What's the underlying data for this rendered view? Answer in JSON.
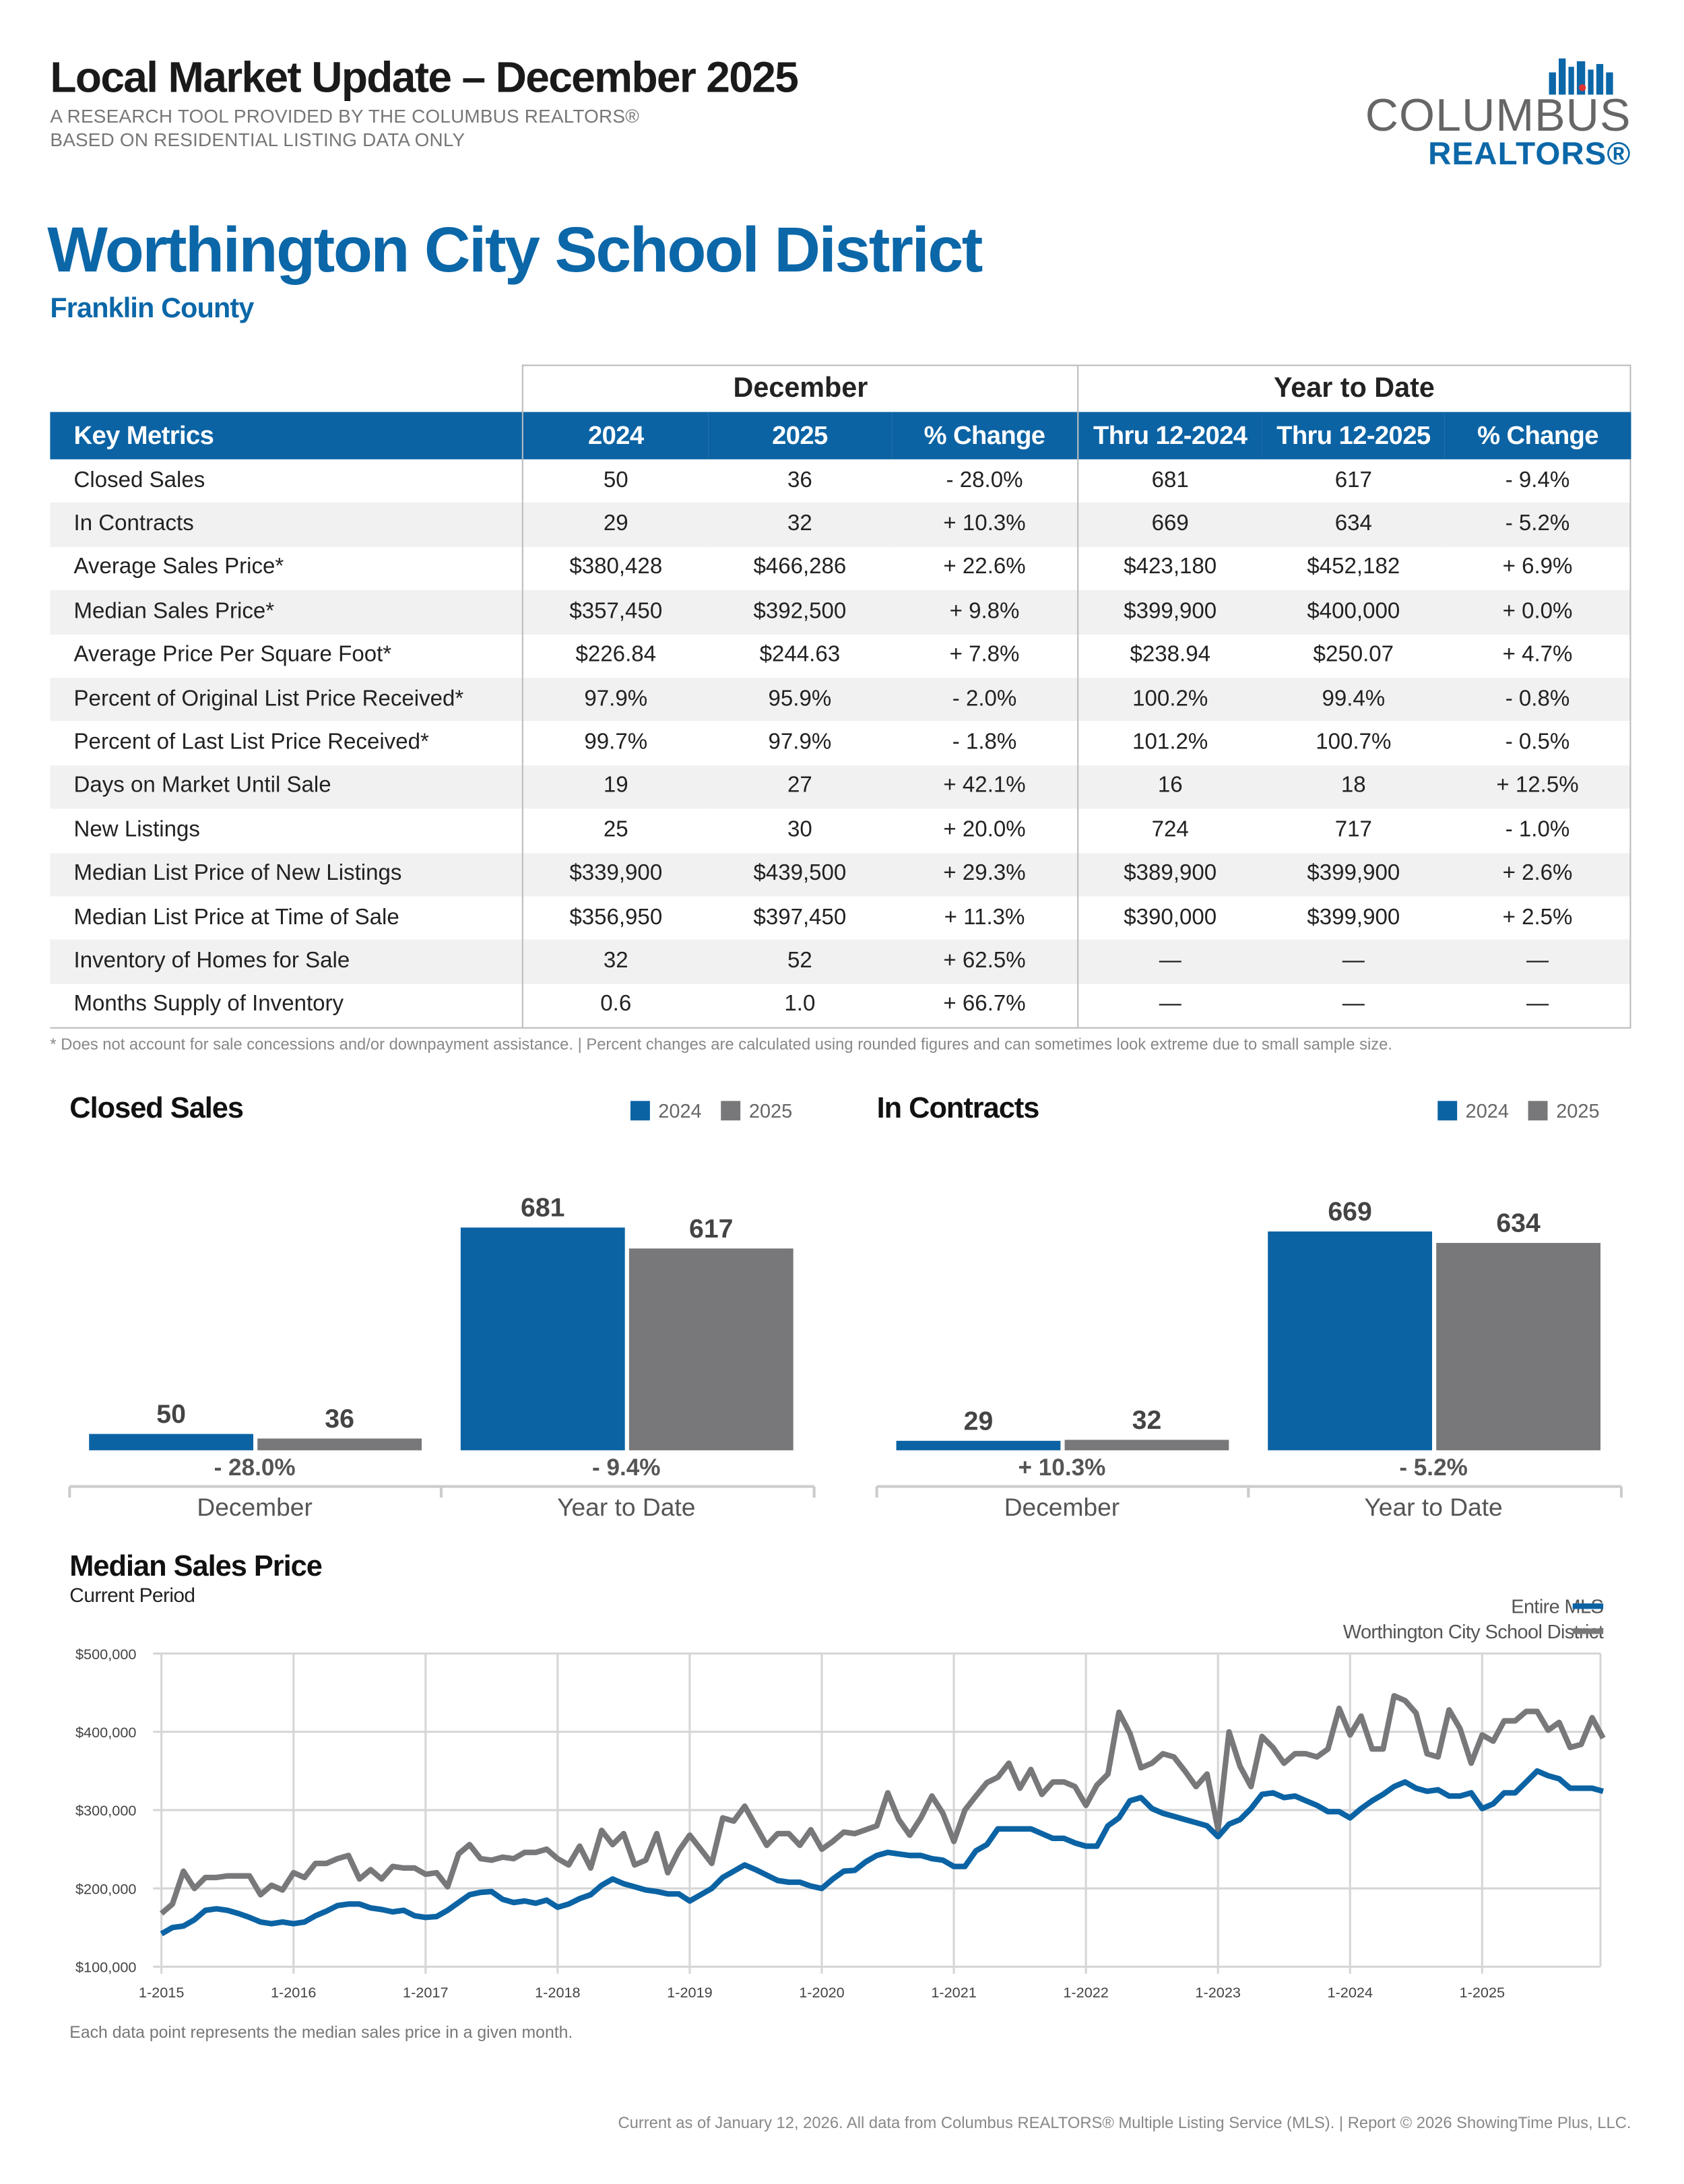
{
  "header": {
    "title": "Local Market Update – December 2025",
    "subtitle1": "A RESEARCH TOOL PROVIDED BY THE COLUMBUS REALTORS®",
    "subtitle2": "BASED ON RESIDENTIAL LISTING DATA ONLY",
    "logo_line1": "COLUMBUS",
    "logo_line2": "REALTORS®"
  },
  "area": {
    "name": "Worthington City School District",
    "county": "Franklin County"
  },
  "colors": {
    "blue": "#0b63a4",
    "gray": "#78787b"
  },
  "table": {
    "group_headers": [
      "December",
      "Year to Date"
    ],
    "columns": [
      "Key Metrics",
      "2024",
      "2025",
      "% Change",
      "Thru 12-2024",
      "Thru 12-2025",
      "% Change"
    ],
    "rows": [
      [
        "Closed Sales",
        "50",
        "36",
        "- 28.0%",
        "681",
        "617",
        "- 9.4%"
      ],
      [
        "In Contracts",
        "29",
        "32",
        "+ 10.3%",
        "669",
        "634",
        "- 5.2%"
      ],
      [
        "Average Sales Price*",
        "$380,428",
        "$466,286",
        "+ 22.6%",
        "$423,180",
        "$452,182",
        "+ 6.9%"
      ],
      [
        "Median Sales Price*",
        "$357,450",
        "$392,500",
        "+ 9.8%",
        "$399,900",
        "$400,000",
        "+ 0.0%"
      ],
      [
        "Average Price Per Square Foot*",
        "$226.84",
        "$244.63",
        "+ 7.8%",
        "$238.94",
        "$250.07",
        "+ 4.7%"
      ],
      [
        "Percent of Original List Price Received*",
        "97.9%",
        "95.9%",
        "- 2.0%",
        "100.2%",
        "99.4%",
        "- 0.8%"
      ],
      [
        "Percent of Last List Price Received*",
        "99.7%",
        "97.9%",
        "- 1.8%",
        "101.2%",
        "100.7%",
        "- 0.5%"
      ],
      [
        "Days on Market Until Sale",
        "19",
        "27",
        "+ 42.1%",
        "16",
        "18",
        "+ 12.5%"
      ],
      [
        "New Listings",
        "25",
        "30",
        "+ 20.0%",
        "724",
        "717",
        "- 1.0%"
      ],
      [
        "Median List Price of New Listings",
        "$339,900",
        "$439,500",
        "+ 29.3%",
        "$389,900",
        "$399,900",
        "+ 2.6%"
      ],
      [
        "Median List Price at Time of Sale",
        "$356,950",
        "$397,450",
        "+ 11.3%",
        "$390,000",
        "$399,900",
        "+ 2.5%"
      ],
      [
        "Inventory of Homes for Sale",
        "32",
        "52",
        "+ 62.5%",
        "—",
        "—",
        "—"
      ],
      [
        "Months Supply of Inventory",
        "0.6",
        "1.0",
        "+ 66.7%",
        "—",
        "—",
        "—"
      ]
    ],
    "footnote": "* Does not account for sale concessions and/or downpayment assistance. | Percent changes are calculated using rounded figures and can sometimes look extreme due to small sample size."
  },
  "chart_data": [
    {
      "type": "bar",
      "title": "Closed Sales",
      "categories": [
        "December",
        "Year to Date"
      ],
      "series": [
        {
          "name": "2024",
          "values": [
            50,
            681
          ]
        },
        {
          "name": "2025",
          "values": [
            36,
            617
          ]
        }
      ],
      "value_labels": [
        [
          "50",
          "681"
        ],
        [
          "36",
          "617"
        ]
      ],
      "change_labels": [
        "- 28.0%",
        "- 9.4%"
      ],
      "legend": "top-right"
    },
    {
      "type": "bar",
      "title": "In Contracts",
      "categories": [
        "December",
        "Year to Date"
      ],
      "series": [
        {
          "name": "2024",
          "values": [
            29,
            669
          ]
        },
        {
          "name": "2025",
          "values": [
            32,
            634
          ]
        }
      ],
      "value_labels": [
        [
          "29",
          "669"
        ],
        [
          "32",
          "634"
        ]
      ],
      "change_labels": [
        "+ 10.3%",
        "- 5.2%"
      ],
      "legend": "top-right"
    },
    {
      "type": "line",
      "title": "Median Sales Price",
      "subtitle": "Current Period",
      "x_start": "1-2015",
      "x_end": "12-2025",
      "x_ticks": [
        "1-2015",
        "1-2016",
        "1-2017",
        "1-2018",
        "1-2019",
        "1-2020",
        "1-2021",
        "1-2022",
        "1-2023",
        "1-2024",
        "1-2025"
      ],
      "y_ticks": [
        "$100,000",
        "$200,000",
        "$300,000",
        "$400,000",
        "$500,000"
      ],
      "ylim": [
        100000,
        500000
      ],
      "grid": true,
      "legend": "top-right",
      "series": [
        {
          "name": "Entire MLS",
          "color": "#0b63a4",
          "values_thousands": [
            142,
            150,
            152,
            160,
            172,
            174,
            172,
            168,
            163,
            157,
            155,
            157,
            155,
            157,
            165,
            171,
            178,
            180,
            180,
            175,
            173,
            170,
            172,
            165,
            163,
            164,
            172,
            182,
            192,
            195,
            196,
            186,
            182,
            184,
            181,
            185,
            176,
            180,
            187,
            192,
            204,
            212,
            206,
            202,
            198,
            196,
            193,
            193,
            184,
            192,
            200,
            214,
            222,
            230,
            224,
            217,
            210,
            208,
            208,
            203,
            200,
            212,
            222,
            223,
            234,
            242,
            246,
            244,
            242,
            242,
            238,
            236,
            228,
            228,
            248,
            256,
            276,
            276,
            276,
            276,
            270,
            264,
            264,
            258,
            254,
            254,
            280,
            290,
            312,
            316,
            302,
            296,
            292,
            288,
            284,
            280,
            266,
            282,
            288,
            302,
            320,
            322,
            316,
            318,
            312,
            306,
            298,
            298,
            290,
            302,
            312,
            320,
            330,
            336,
            328,
            324,
            326,
            318,
            318,
            322,
            302,
            308,
            322,
            322,
            336,
            350,
            344,
            340,
            328,
            328,
            328,
            324
          ]
        },
        {
          "name": "Worthington City School District",
          "color": "#78787b",
          "values_thousands": [
            168,
            180,
            222,
            200,
            214,
            214,
            216,
            216,
            216,
            192,
            204,
            198,
            220,
            214,
            232,
            232,
            238,
            242,
            212,
            224,
            212,
            228,
            226,
            226,
            218,
            220,
            202,
            244,
            256,
            238,
            236,
            240,
            238,
            246,
            246,
            250,
            238,
            230,
            254,
            226,
            274,
            256,
            270,
            230,
            236,
            270,
            220,
            248,
            268,
            250,
            232,
            290,
            286,
            305,
            280,
            255,
            270,
            270,
            255,
            275,
            250,
            260,
            272,
            270,
            275,
            280,
            322,
            288,
            268,
            290,
            318,
            296,
            260,
            300,
            318,
            335,
            342,
            360,
            328,
            352,
            320,
            336,
            336,
            330,
            306,
            332,
            346,
            425,
            398,
            354,
            360,
            372,
            368,
            350,
            330,
            346,
            275,
            400,
            356,
            330,
            394,
            380,
            360,
            372,
            372,
            368,
            378,
            430,
            396,
            420,
            378,
            378,
            446,
            440,
            424,
            372,
            368,
            428,
            404,
            360,
            396,
            388,
            414,
            414,
            426,
            426,
            402,
            412,
            380,
            384,
            418,
            392
          ]
        }
      ],
      "note": "Each data point represents the median sales price in a given month."
    }
  ],
  "footer": "Current as of January 12, 2026. All data from Columbus REALTORS® Multiple Listing Service (MLS). | Report © 2026 ShowingTime Plus, LLC."
}
